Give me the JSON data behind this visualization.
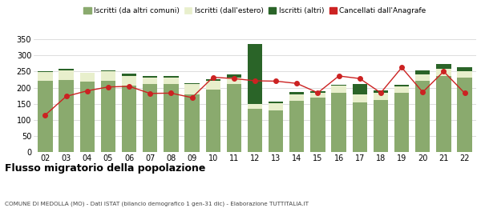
{
  "years": [
    "02",
    "03",
    "04",
    "05",
    "06",
    "07",
    "08",
    "09",
    "10",
    "11",
    "12",
    "13",
    "14",
    "15",
    "16",
    "17",
    "18",
    "19",
    "20",
    "21",
    "22"
  ],
  "iscritti_comuni": [
    220,
    224,
    218,
    222,
    205,
    210,
    210,
    178,
    195,
    210,
    135,
    130,
    160,
    168,
    185,
    155,
    162,
    185,
    220,
    235,
    232
  ],
  "iscritti_estero": [
    28,
    30,
    27,
    28,
    30,
    22,
    22,
    32,
    25,
    22,
    15,
    22,
    18,
    17,
    22,
    25,
    22,
    18,
    20,
    22,
    18
  ],
  "iscritti_altri": [
    2,
    4,
    2,
    2,
    8,
    3,
    3,
    4,
    6,
    10,
    185,
    5,
    8,
    3,
    2,
    30,
    8,
    6,
    12,
    15,
    12
  ],
  "cancellati": [
    115,
    173,
    190,
    202,
    204,
    182,
    183,
    169,
    232,
    228,
    221,
    220,
    213,
    184,
    236,
    228,
    184,
    262,
    186,
    250,
    183
  ],
  "color_comuni": "#8aaa6e",
  "color_estero": "#e8efcc",
  "color_altri": "#2a6428",
  "color_cancellati": "#cc2222",
  "ylim": [
    0,
    360
  ],
  "yticks": [
    0,
    50,
    100,
    150,
    200,
    250,
    300,
    350
  ],
  "title": "Flusso migratorio della popolazione",
  "subtitle": "COMUNE DI MEDOLLA (MO) - Dati ISTAT (bilancio demografico 1 gen-31 dic) - Elaborazione TUTTITALIA.IT",
  "legend_labels": [
    "Iscritti (da altri comuni)",
    "Iscritti (dall'estero)",
    "Iscritti (altri)",
    "Cancellati dall'Anagrafe"
  ],
  "background_color": "#ffffff",
  "grid_color": "#d0d0d0"
}
